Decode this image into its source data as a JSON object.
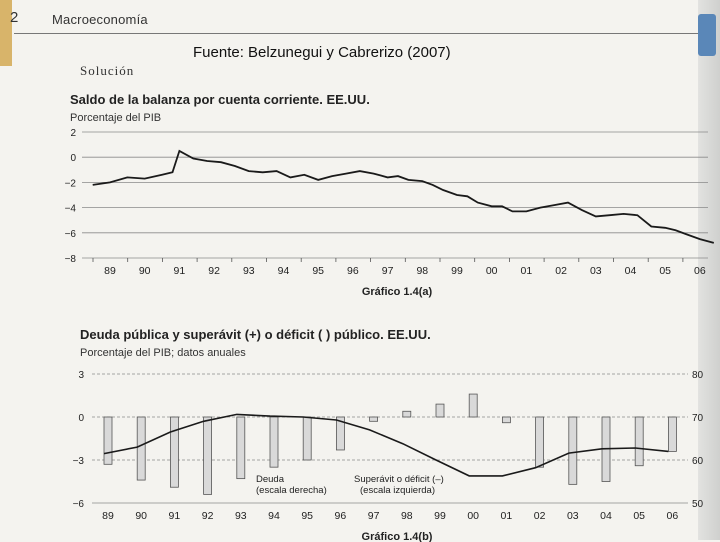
{
  "page": {
    "page_number": "2",
    "running_head": "Macroeconomía",
    "source_note": "Fuente: Belzunegui y Cabrerizo (2007)",
    "section_label": "Solución"
  },
  "chart_data": [
    {
      "type": "line",
      "title": "Saldo de la balanza por cuenta corriente. EE.UU.",
      "subtitle": "Porcentaje del PIB",
      "caption": "Gráfico 1.4(a)",
      "xlabel": "",
      "ylabel": "",
      "ylim": [
        -8,
        2
      ],
      "yticks": [
        "2",
        "0",
        "−2",
        "−4",
        "−6",
        "−8"
      ],
      "categories": [
        "89",
        "90",
        "91",
        "92",
        "93",
        "94",
        "95",
        "96",
        "97",
        "98",
        "99",
        "00",
        "01",
        "02",
        "03",
        "04",
        "05",
        "06"
      ],
      "grid": true,
      "x": [
        1988.5,
        1989,
        1989.5,
        1990,
        1990.5,
        1990.8,
        1991,
        1991.4,
        1991.8,
        1992.2,
        1992.6,
        1993,
        1993.4,
        1993.8,
        1994.2,
        1994.6,
        1995,
        1995.4,
        1995.8,
        1996.2,
        1996.6,
        1997,
        1997.3,
        1997.6,
        1998,
        1998.3,
        1998.6,
        1999,
        1999.3,
        1999.6,
        2000,
        2000.3,
        2000.6,
        2001,
        2001.4,
        2001.8,
        2002.2,
        2002.6,
        2003,
        2003.4,
        2003.8,
        2004.2,
        2004.6,
        2005,
        2005.3,
        2005.6,
        2006,
        2006.4
      ],
      "series": [
        {
          "values": [
            -2.2,
            -2.0,
            -1.6,
            -1.7,
            -1.4,
            -1.2,
            0.5,
            -0.1,
            -0.3,
            -0.4,
            -0.7,
            -1.1,
            -1.2,
            -1.1,
            -1.6,
            -1.4,
            -1.8,
            -1.5,
            -1.3,
            -1.1,
            -1.3,
            -1.6,
            -1.5,
            -1.8,
            -1.9,
            -2.2,
            -2.6,
            -3.0,
            -3.1,
            -3.6,
            -3.9,
            -3.9,
            -4.3,
            -4.3,
            -4.0,
            -3.8,
            -3.6,
            -4.2,
            -4.7,
            -4.6,
            -4.5,
            -4.6,
            -5.5,
            -5.6,
            -5.8,
            -6.1,
            -6.5,
            -6.8
          ]
        }
      ]
    },
    {
      "type": "bar",
      "title": "Deuda pública y superávit (+) o déficit (  ) público. EE.UU.",
      "subtitle": "Porcentaje del PIB; datos anuales",
      "caption": "Gráfico 1.4(b)",
      "xlabel": "",
      "ylabel": "",
      "ylim_left": [
        -6,
        3
      ],
      "ylim_right": [
        50,
        80
      ],
      "yticks_left": [
        "3",
        "0",
        "−3",
        "−6"
      ],
      "yticks_right": [
        "80",
        "70",
        "60",
        "50"
      ],
      "categories": [
        "89",
        "90",
        "91",
        "92",
        "93",
        "94",
        "95",
        "96",
        "97",
        "98",
        "99",
        "00",
        "01",
        "02",
        "03",
        "04",
        "05",
        "06"
      ],
      "grid": true,
      "annotations": [
        "Deuda (escala derecha)",
        "Superávit o déficit (–) (escala izquierda)"
      ],
      "series": [
        {
          "name": "Superávit o déficit (–) (escala izquierda)",
          "axis": "left",
          "values": [
            -3.3,
            -4.4,
            -4.9,
            -5.4,
            -4.3,
            -3.5,
            -3.0,
            -2.3,
            -0.3,
            0.4,
            0.9,
            1.6,
            -0.4,
            -3.5,
            -4.7,
            -4.5,
            -3.4,
            -2.4
          ]
        },
        {
          "name": "Deuda (escala derecha)",
          "axis": "right",
          "values": [
            61.5,
            63,
            66.5,
            69,
            70.6,
            70.2,
            70,
            69.3,
            67,
            63.8,
            60,
            56.3,
            56.3,
            58.2,
            61.6,
            62.6,
            62.8,
            62
          ]
        }
      ]
    }
  ]
}
